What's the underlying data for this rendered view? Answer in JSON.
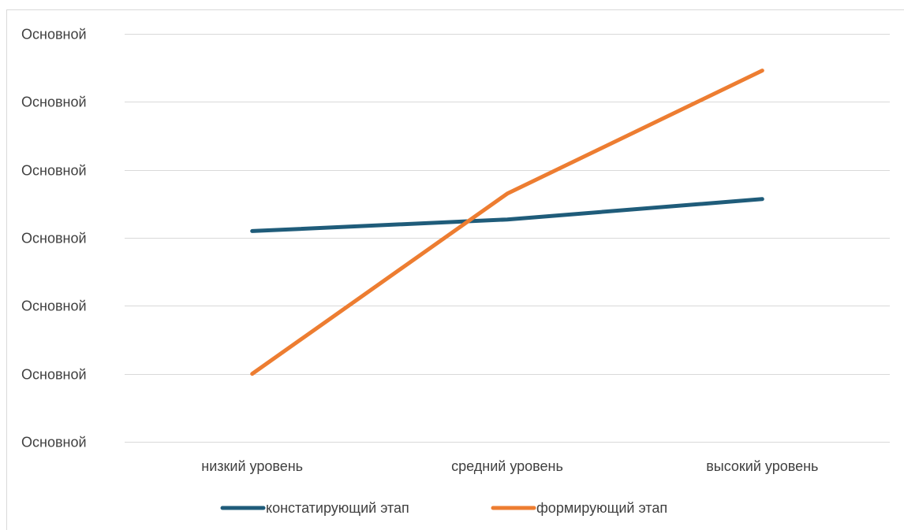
{
  "chart_data": {
    "type": "line",
    "title": "",
    "xlabel": "",
    "ylabel": "",
    "categories": [
      "низкий уровень",
      "средний уровень",
      "высокий уровень"
    ],
    "y_tick_labels": [
      "Основной",
      "Основной",
      "Основной",
      "Основной",
      "Основной",
      "Основной",
      "Основной"
    ],
    "ylim": [
      0,
      6
    ],
    "grid": true,
    "legend_position": "bottom",
    "series": [
      {
        "name": "констатирующий этап",
        "color": "#1f5c7a",
        "values": [
          3.1,
          3.27,
          3.57
        ]
      },
      {
        "name": "формирующий этап",
        "color": "#ed7d31",
        "values": [
          1.0,
          3.65,
          5.46
        ]
      }
    ]
  }
}
